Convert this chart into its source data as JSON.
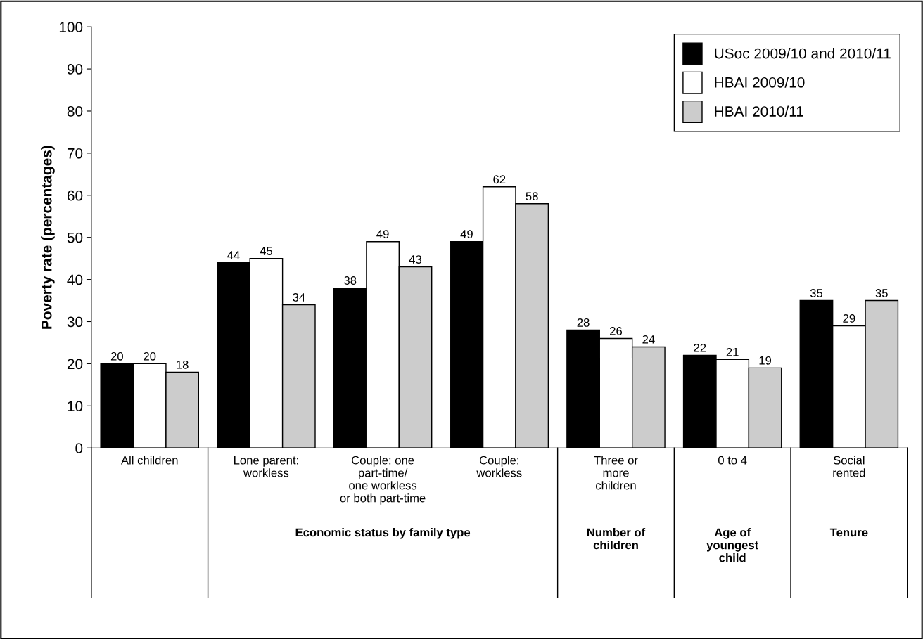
{
  "chart_data": {
    "type": "bar",
    "ylabel": "Poverty rate (percentages)",
    "categories": [
      "All children",
      "Lone parent:\nworkless",
      "Couple: one\npart-time/\none workless\nor both part-time",
      "Couple:\nworkless",
      "Three or\nmore\nchildren",
      "0 to 4",
      "Social\nrented"
    ],
    "series": [
      {
        "name": "USoc 2009/10 and 2010/11",
        "color": "#000000",
        "values": [
          20,
          44,
          38,
          49,
          28,
          22,
          35
        ]
      },
      {
        "name": "HBAI 2009/10",
        "color": "#ffffff",
        "values": [
          20,
          45,
          49,
          62,
          26,
          21,
          29
        ]
      },
      {
        "name": "HBAI 2010/11",
        "color": "#cccccc",
        "values": [
          18,
          34,
          43,
          58,
          24,
          19,
          35
        ]
      }
    ],
    "ylim": [
      0,
      100
    ],
    "yticks": [
      0,
      10,
      20,
      30,
      40,
      50,
      60,
      70,
      80,
      90,
      100
    ],
    "data_labels": true,
    "legend": "top right",
    "grid": false,
    "annotations": [
      "Economic status by family type",
      "Number of\nchildren",
      "Age of\nyoungest\nchild",
      "Tenure"
    ]
  }
}
